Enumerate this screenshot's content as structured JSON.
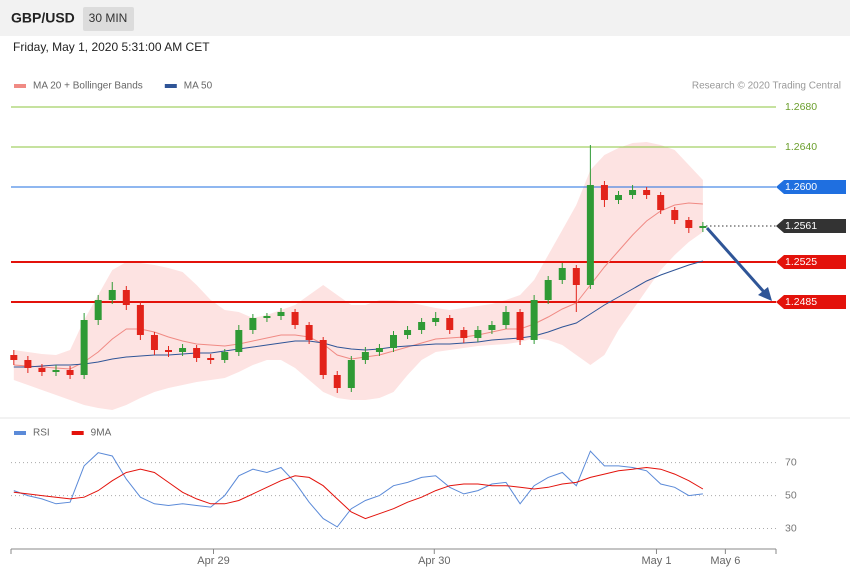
{
  "header": {
    "symbol": "GBP/USD",
    "interval": "30 MIN",
    "date": "Friday, May 1, 2020 5:31:00 AM CET",
    "credit": "Research © 2020 Trading Central"
  },
  "chart_data": [
    {
      "type": "candlestick",
      "x": [
        0,
        1,
        2,
        3,
        4,
        5,
        6,
        7,
        8,
        9,
        10,
        11,
        12,
        13,
        14,
        15,
        16,
        17,
        18,
        19,
        20,
        21,
        22,
        23,
        24,
        25,
        26,
        27,
        28,
        29,
        30,
        31,
        32,
        33,
        34,
        35,
        36,
        37,
        38,
        39,
        40,
        41,
        42,
        43,
        44,
        45,
        46,
        47,
        48,
        49
      ],
      "open": [
        1.2432,
        1.2427,
        1.2419,
        1.2415,
        1.2417,
        1.2412,
        1.2467,
        1.2487,
        1.2497,
        1.2482,
        1.2452,
        1.2437,
        1.2435,
        1.2439,
        1.2429,
        1.2427,
        1.2435,
        1.2457,
        1.2469,
        1.2471,
        1.2475,
        1.2462,
        1.2447,
        1.2412,
        1.2399,
        1.2427,
        1.2435,
        1.2439,
        1.2452,
        1.2457,
        1.2465,
        1.2469,
        1.2457,
        1.2449,
        1.2457,
        1.2462,
        1.2475,
        1.2447,
        1.2487,
        1.2507,
        1.2519,
        1.2502,
        1.2602,
        1.2587,
        1.2592,
        1.2597,
        1.2592,
        1.2577,
        1.2567,
        1.2559
      ],
      "high": [
        1.2437,
        1.2431,
        1.2423,
        1.2422,
        1.2421,
        1.2474,
        1.2492,
        1.2505,
        1.2501,
        1.2486,
        1.2455,
        1.2441,
        1.2443,
        1.2442,
        1.2433,
        1.2438,
        1.2462,
        1.2473,
        1.2474,
        1.2479,
        1.2478,
        1.2465,
        1.245,
        1.2416,
        1.2431,
        1.244,
        1.2443,
        1.2456,
        1.2461,
        1.2469,
        1.2475,
        1.2472,
        1.246,
        1.2461,
        1.2466,
        1.2481,
        1.2478,
        1.2492,
        1.2511,
        1.2524,
        1.2522,
        1.2642,
        1.2606,
        1.2596,
        1.2602,
        1.26,
        1.2595,
        1.258,
        1.257,
        1.2565
      ],
      "low": [
        1.2422,
        1.2414,
        1.2411,
        1.2411,
        1.2408,
        1.2408,
        1.2462,
        1.2483,
        1.2477,
        1.2447,
        1.2432,
        1.243,
        1.2431,
        1.2425,
        1.2423,
        1.2424,
        1.2431,
        1.2453,
        1.2465,
        1.2467,
        1.2458,
        1.2443,
        1.2408,
        1.2394,
        1.2395,
        1.2423,
        1.2431,
        1.2435,
        1.2448,
        1.2453,
        1.2461,
        1.2453,
        1.2444,
        1.2445,
        1.2453,
        1.2458,
        1.2442,
        1.2443,
        1.2483,
        1.2503,
        1.2475,
        1.2498,
        1.258,
        1.2583,
        1.2588,
        1.2588,
        1.2573,
        1.2563,
        1.2554,
        1.2555
      ],
      "close": [
        1.2427,
        1.2419,
        1.2415,
        1.2417,
        1.2412,
        1.2467,
        1.2487,
        1.2497,
        1.2482,
        1.2452,
        1.2437,
        1.2435,
        1.2439,
        1.2429,
        1.2427,
        1.2435,
        1.2457,
        1.2469,
        1.2471,
        1.2475,
        1.2462,
        1.2447,
        1.2412,
        1.2399,
        1.2427,
        1.2435,
        1.2439,
        1.2452,
        1.2457,
        1.2465,
        1.2469,
        1.2457,
        1.2449,
        1.2457,
        1.2462,
        1.2475,
        1.2447,
        1.2487,
        1.2507,
        1.2519,
        1.2502,
        1.2602,
        1.2587,
        1.2592,
        1.2597,
        1.2592,
        1.2577,
        1.2567,
        1.2559,
        1.2561
      ],
      "up_color": "#2f9a35",
      "down_color": "#e2231a",
      "series": [
        {
          "name": "MA 20 + Bollinger Bands",
          "color": "#f08a84",
          "band_color": "#fde3e2",
          "values": [
            1.2422,
            1.2421,
            1.242,
            1.2419,
            1.2418,
            1.2425,
            1.2435,
            1.2448,
            1.2458,
            1.2458,
            1.2455,
            1.245,
            1.2446,
            1.2443,
            1.2442,
            1.2441,
            1.2443,
            1.2446,
            1.2449,
            1.2452,
            1.2452,
            1.245,
            1.2443,
            1.2432,
            1.2428,
            1.243,
            1.2432,
            1.2436,
            1.244,
            1.2444,
            1.2448,
            1.2449,
            1.245,
            1.2452,
            1.2455,
            1.2458,
            1.2458,
            1.2463,
            1.247,
            1.2478,
            1.2484,
            1.2502,
            1.252,
            1.2536,
            1.2552,
            1.2566,
            1.2576,
            1.2582,
            1.2584,
            1.2583
          ],
          "upper": [
            1.2437,
            1.2435,
            1.2433,
            1.2432,
            1.2437,
            1.2467,
            1.2492,
            1.2517,
            1.2525,
            1.2524,
            1.2522,
            1.2519,
            1.2515,
            1.2502,
            1.2487,
            1.2477,
            1.2475,
            1.2469,
            1.2472,
            1.2477,
            1.2482,
            1.2492,
            1.2502,
            1.2492,
            1.2482,
            1.2482,
            1.2487,
            1.2487,
            1.2485,
            1.2482,
            1.2479,
            1.2477,
            1.2479,
            1.2481,
            1.2483,
            1.2487,
            1.2492,
            1.2507,
            1.2532,
            1.2557,
            1.2582,
            1.2617,
            1.2632,
            1.2639,
            1.2644,
            1.2645,
            1.2642,
            1.2637,
            1.2622,
            1.2607
          ],
          "lower": [
            1.2407,
            1.2402,
            1.2397,
            1.2392,
            1.2387,
            1.2382,
            1.2379,
            1.2377,
            1.2382,
            1.2389,
            1.2395,
            1.2399,
            1.2402,
            1.2405,
            1.2407,
            1.2409,
            1.2415,
            1.2422,
            1.2427,
            1.2427,
            1.2419,
            1.2407,
            1.2395,
            1.2389,
            1.2387,
            1.2387,
            1.2389,
            1.2395,
            1.2412,
            1.2427,
            1.2435,
            1.2437,
            1.2439,
            1.2441,
            1.2442,
            1.2443,
            1.2445,
            1.2449,
            1.2447,
            1.2442,
            1.2432,
            1.2422,
            1.2432,
            1.2457,
            1.2477,
            1.2497,
            1.2517,
            1.2532,
            1.2545,
            1.2555
          ]
        },
        {
          "name": "MA 50",
          "color": "#2f5597",
          "values": [
            1.242,
            1.242,
            1.2421,
            1.2422,
            1.2422,
            1.2423,
            1.2425,
            1.2428,
            1.243,
            1.2431,
            1.2432,
            1.2432,
            1.2433,
            1.2434,
            1.2434,
            1.2436,
            1.2438,
            1.244,
            1.2442,
            1.2444,
            1.2446,
            1.2446,
            1.2444,
            1.244,
            1.2438,
            1.2437,
            1.2438,
            1.244,
            1.2441,
            1.2442,
            1.2443,
            1.2443,
            1.2444,
            1.2445,
            1.2447,
            1.2448,
            1.2449,
            1.2451,
            1.2455,
            1.246,
            1.2464,
            1.2473,
            1.2482,
            1.249,
            1.2498,
            1.2506,
            1.2512,
            1.2517,
            1.2522,
            1.2526
          ]
        }
      ],
      "levels": [
        {
          "value": 1.268,
          "label": "1.2680",
          "color": "#8cc63f",
          "style": "plain"
        },
        {
          "value": 1.264,
          "label": "1.2640",
          "color": "#8cc63f",
          "style": "plain"
        },
        {
          "value": 1.26,
          "label": "1.2600",
          "color": "#1f6fe0",
          "style": "box"
        },
        {
          "value": 1.2561,
          "color": "#333333",
          "style": "current"
        },
        {
          "value": 1.2525,
          "color": "#e3120b",
          "style": "strong"
        },
        {
          "value": 1.2485,
          "color": "#e3120b",
          "style": "strong"
        }
      ],
      "xlim": [
        -0.2,
        54.2
      ],
      "ylim": [
        1.2372,
        1.2727
      ]
    },
    {
      "type": "line",
      "x": [
        0,
        1,
        2,
        3,
        4,
        5,
        6,
        7,
        8,
        9,
        10,
        11,
        12,
        13,
        14,
        15,
        16,
        17,
        18,
        19,
        20,
        21,
        22,
        23,
        24,
        25,
        26,
        27,
        28,
        29,
        30,
        31,
        32,
        33,
        34,
        35,
        36,
        37,
        38,
        39,
        40,
        41,
        42,
        43,
        44,
        45,
        46,
        47,
        48,
        49
      ],
      "series": [
        {
          "name": "RSI",
          "color": "#5b8ad8",
          "values": [
            53,
            50,
            48,
            45,
            46,
            68,
            76,
            74,
            60,
            49,
            45,
            44,
            45,
            44,
            43,
            50,
            62,
            66,
            64,
            67,
            58,
            46,
            36,
            31,
            42,
            47,
            50,
            56,
            58,
            61,
            62,
            55,
            51,
            53,
            57,
            58,
            45,
            56,
            61,
            64,
            56,
            77,
            68,
            68,
            67,
            65,
            57,
            55,
            50,
            51
          ]
        },
        {
          "name": "9MA",
          "color": "#e3120b",
          "values": [
            52,
            51,
            50,
            49,
            48,
            49,
            53,
            59,
            64,
            66,
            64,
            58,
            52,
            48,
            45,
            45,
            47,
            51,
            55,
            59,
            62,
            61,
            56,
            48,
            40,
            36,
            39,
            42,
            46,
            49,
            53,
            56,
            57,
            57,
            56,
            56,
            55,
            54,
            55,
            57,
            58,
            61,
            63,
            65,
            66,
            67,
            66,
            63,
            59,
            54
          ]
        }
      ],
      "xlim": [
        -0.2,
        54.2
      ],
      "ylim": [
        20,
        91
      ],
      "yticks": [
        30,
        50,
        70
      ],
      "xticks": [
        {
          "value": 14.2,
          "label": "Apr 29"
        },
        {
          "value": 29.9,
          "label": "Apr 30"
        },
        {
          "value": 45.7,
          "label": "May 1"
        },
        {
          "value": 50.6,
          "label": "May 6"
        }
      ]
    }
  ]
}
